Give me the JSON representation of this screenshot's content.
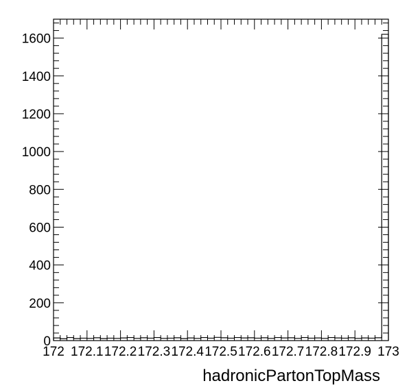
{
  "chart_data": {
    "type": "histogram",
    "xlabel": "hadronicPartonTopMass",
    "ylabel": "",
    "xlim": [
      172,
      173
    ],
    "ylim": [
      0,
      1700
    ],
    "x_tick_labels": [
      "172",
      "172.1",
      "172.2",
      "172.3",
      "172.4",
      "172.5",
      "172.6",
      "172.7",
      "172.8",
      "172.9",
      "173"
    ],
    "y_tick_labels": [
      "0",
      "200",
      "400",
      "600",
      "800",
      "1000",
      "1200",
      "1400",
      "1600"
    ],
    "grid": false,
    "legend": "none",
    "bins": 50,
    "bin_width": 0.02,
    "values": [
      14,
      10,
      16,
      11,
      13,
      12,
      15,
      11,
      13,
      12,
      14,
      16,
      12,
      15,
      13,
      16,
      12,
      13,
      15,
      11,
      14,
      12,
      16,
      13,
      17,
      15,
      13,
      16,
      14,
      15,
      13,
      15,
      12,
      16,
      14,
      15,
      12,
      16,
      13,
      14,
      12,
      16,
      14,
      13,
      15,
      12,
      14,
      13,
      15,
      1620
    ],
    "colors": {
      "line": "#000000",
      "background": "#ffffff"
    }
  }
}
